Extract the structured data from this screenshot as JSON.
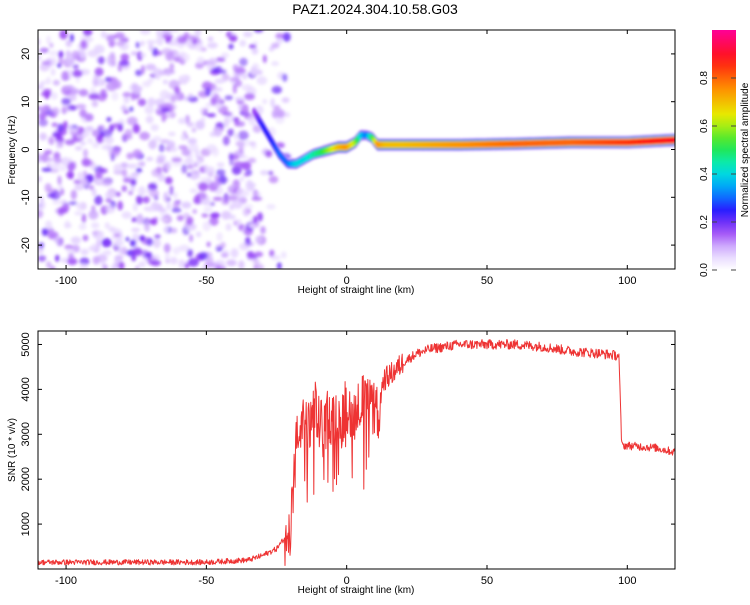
{
  "title": "PAZ1.2024.304.10.58.G03",
  "chart_data": [
    {
      "type": "heatmap",
      "xlabel": "Height of straight line (km)",
      "ylabel": "Frequency (Hz)",
      "xlim": [
        -110,
        117
      ],
      "ylim": [
        -25,
        25
      ],
      "xticks": [
        -100,
        -50,
        0,
        50,
        100
      ],
      "yticks": [
        -20,
        -10,
        0,
        10,
        20
      ],
      "colorbar": {
        "label": "Normalized spectral amplitude",
        "range": [
          0,
          1
        ],
        "ticks": [
          "0.0",
          "0.2",
          "0.4",
          "0.6",
          "0.8"
        ],
        "colormap": "white-purple-blue-cyan-green-yellow-red-magenta"
      },
      "noise_region_x": [
        -110,
        -27
      ],
      "ridge": {
        "x": [
          -33,
          -30,
          -27,
          -24,
          -21,
          -18,
          -15,
          -12,
          -9,
          -6,
          -3,
          0,
          3,
          5,
          7,
          9,
          11,
          14,
          20,
          40,
          60,
          80,
          100,
          117
        ],
        "frequency_hz": [
          8,
          5,
          2,
          -1,
          -3,
          -3,
          -2,
          -1,
          -0.5,
          0,
          0.5,
          0.5,
          1.5,
          3,
          3,
          2.5,
          1,
          1,
          1,
          1,
          1.2,
          1.5,
          1.5,
          2
        ],
        "amplitude": [
          0.15,
          0.25,
          0.25,
          0.3,
          0.3,
          0.4,
          0.4,
          0.45,
          0.5,
          0.6,
          0.7,
          0.75,
          0.6,
          0.4,
          0.3,
          0.5,
          0.75,
          0.7,
          0.7,
          0.75,
          0.8,
          0.8,
          0.85,
          0.9
        ]
      }
    },
    {
      "type": "line",
      "xlabel": "Height of straight line (km)",
      "ylabel": "SNR (10 * v/v)",
      "xlim": [
        -110,
        117
      ],
      "ylim": [
        0,
        5300
      ],
      "xticks": [
        -100,
        -50,
        0,
        50,
        100
      ],
      "yticks": [
        1000,
        2000,
        3000,
        4000,
        5000
      ],
      "color": "#ee3333",
      "series": [
        {
          "x": [
            -110,
            -80,
            -50,
            -35,
            -30,
            -25,
            -22,
            -20,
            -19,
            -18,
            -17,
            -16,
            -15,
            -13,
            -11,
            -9,
            -7,
            -5,
            -3,
            -1,
            1,
            3,
            5,
            7,
            9,
            11,
            12,
            13,
            15,
            17,
            20,
            25,
            30,
            40,
            50,
            60,
            70,
            80,
            90,
            97,
            98,
            100,
            110,
            117
          ],
          "y": [
            150,
            150,
            150,
            200,
            300,
            450,
            700,
            1000,
            1800,
            2700,
            3100,
            3400,
            3000,
            3200,
            3500,
            3100,
            3400,
            3300,
            3500,
            3400,
            3600,
            3500,
            3800,
            3600,
            3600,
            3400,
            3800,
            4200,
            4300,
            4400,
            4600,
            4800,
            4900,
            5000,
            5000,
            5000,
            4950,
            4850,
            4800,
            4750,
            2750,
            2750,
            2700,
            2600
          ]
        }
      ]
    }
  ]
}
